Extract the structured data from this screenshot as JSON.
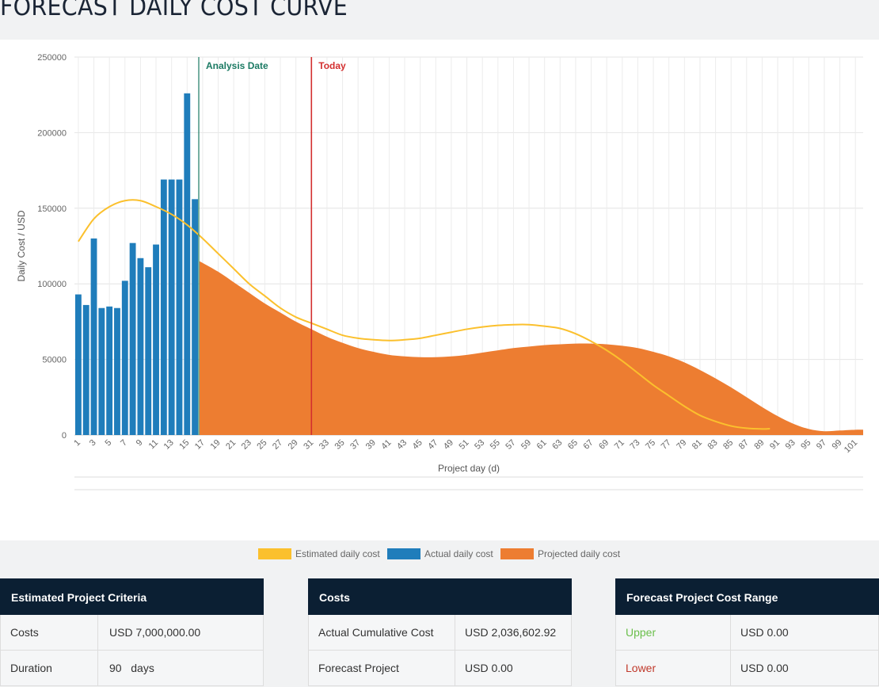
{
  "page_title": "FORECAST DAILY COST CURVE",
  "colors": {
    "estimated": "#fbc02d",
    "actual": "#1f7dbb",
    "projected": "#ed7d31",
    "analysis": "#1b7a63",
    "today": "#d32f2f",
    "upper": "#6abf4b",
    "lower": "#c0392b"
  },
  "chart_data": {
    "type": "bar+line+area",
    "xlabel": "Project day (d)",
    "ylabel": "Daily Cost / USD",
    "ylim": [
      0,
      250000
    ],
    "yticks": [
      0,
      50000,
      100000,
      150000,
      200000,
      250000
    ],
    "xlim": [
      1,
      102
    ],
    "xticks": [
      1,
      3,
      5,
      7,
      9,
      11,
      13,
      15,
      17,
      19,
      21,
      23,
      25,
      27,
      29,
      31,
      33,
      35,
      37,
      39,
      41,
      43,
      45,
      47,
      49,
      51,
      53,
      55,
      57,
      59,
      61,
      63,
      65,
      67,
      69,
      71,
      73,
      75,
      77,
      79,
      81,
      83,
      85,
      87,
      89,
      91,
      93,
      95,
      97,
      99,
      101
    ],
    "grid": true,
    "legend": "bottom",
    "series": [
      {
        "name": "Estimated daily cost",
        "type": "line",
        "x": [
          1,
          3,
          5,
          7,
          9,
          11,
          13,
          15,
          17,
          19,
          21,
          23,
          25,
          27,
          29,
          31,
          33,
          35,
          37,
          39,
          41,
          43,
          45,
          47,
          49,
          51,
          53,
          55,
          57,
          59,
          61,
          63,
          65,
          67,
          69,
          71,
          73,
          75,
          77,
          79,
          81,
          83,
          85,
          87,
          89,
          90
        ],
        "y": [
          128000,
          143000,
          151000,
          155000,
          155000,
          151000,
          146000,
          139000,
          130000,
          120000,
          110000,
          100000,
          92000,
          84000,
          78000,
          74000,
          70000,
          66000,
          64000,
          63000,
          62500,
          63000,
          64000,
          66000,
          68000,
          70000,
          71500,
          72500,
          73000,
          73000,
          72000,
          70500,
          67000,
          62000,
          56000,
          49000,
          41000,
          33000,
          26000,
          19000,
          13000,
          9000,
          6000,
          4500,
          4000,
          4200
        ]
      },
      {
        "name": "Actual daily cost",
        "type": "bar",
        "x": [
          1,
          2,
          3,
          4,
          5,
          6,
          7,
          8,
          9,
          10,
          11,
          12,
          13,
          14,
          15,
          16
        ],
        "y": [
          93000,
          86000,
          130000,
          84000,
          85000,
          84000,
          102000,
          127000,
          117000,
          111000,
          126000,
          169000,
          169000,
          169000,
          226000,
          156000
        ]
      },
      {
        "name": "Projected daily cost",
        "type": "area",
        "x": [
          17,
          19,
          21,
          23,
          25,
          27,
          29,
          31,
          33,
          35,
          37,
          39,
          41,
          43,
          45,
          47,
          49,
          51,
          53,
          55,
          57,
          59,
          61,
          63,
          65,
          67,
          69,
          71,
          73,
          75,
          77,
          79,
          81,
          83,
          85,
          87,
          89,
          91,
          93,
          95,
          97,
          99,
          101,
          102
        ],
        "y": [
          115000,
          108000,
          101000,
          94000,
          87000,
          81000,
          75000,
          70000,
          65000,
          61000,
          57500,
          55000,
          53000,
          52000,
          51500,
          51500,
          52000,
          53000,
          54500,
          56000,
          57500,
          58500,
          59500,
          60000,
          60500,
          60500,
          60000,
          59000,
          57500,
          55000,
          52000,
          48000,
          43000,
          37500,
          31500,
          25000,
          18500,
          12500,
          7500,
          4000,
          2500,
          3000,
          3500,
          3500
        ]
      }
    ],
    "annotations": [
      {
        "label": "Analysis Date",
        "x": 16.5
      },
      {
        "label": "Today",
        "x": 31
      }
    ]
  },
  "panels": [
    {
      "title": "Estimated Project Criteria",
      "rows": [
        {
          "label": "Costs",
          "value": "USD 7,000,000.00"
        },
        {
          "label": "Duration",
          "value": "90   days"
        }
      ]
    },
    {
      "title": "Costs",
      "rows": [
        {
          "label": "Actual Cumulative Cost",
          "value": "USD 2,036,602.92"
        },
        {
          "label": "Forecast Project",
          "value": "USD 0.00"
        }
      ]
    },
    {
      "title": "Forecast Project Cost Range",
      "rows": [
        {
          "label": "Upper",
          "value": "USD 0.00"
        },
        {
          "label": "Lower",
          "value": "USD 0.00"
        }
      ]
    }
  ]
}
